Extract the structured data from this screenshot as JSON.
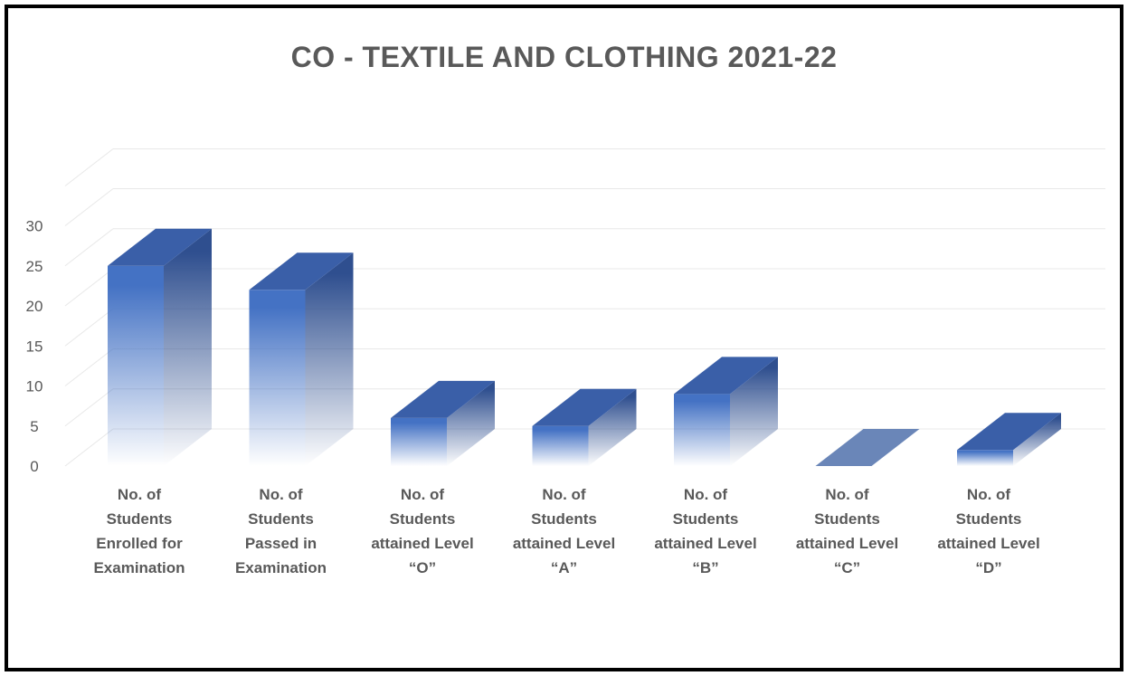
{
  "chart_data": {
    "type": "bar",
    "title": "CO - TEXTILE AND CLOTHING 2021-22",
    "categories": [
      [
        "No. of",
        "Students",
        "Enrolled for",
        "Examination"
      ],
      [
        "No. of",
        "Students",
        "Passed in",
        "Examination"
      ],
      [
        "No. of",
        "Students",
        "attained Level",
        "“O”"
      ],
      [
        "No. of",
        "Students",
        "attained Level",
        "“A”"
      ],
      [
        "No. of",
        "Students",
        "attained Level",
        "“B”"
      ],
      [
        "No. of",
        "Students",
        "attained Level",
        "“C”"
      ],
      [
        "No. of",
        "Students",
        "attained Level",
        "“D”"
      ]
    ],
    "values": [
      25,
      22,
      6,
      5,
      9,
      0,
      2
    ],
    "ylim": [
      0,
      30
    ],
    "yticks": [
      "0",
      "5",
      "10",
      "15",
      "20",
      "25",
      "30"
    ],
    "grid": true,
    "legend": "none",
    "colors": {
      "front": "#4472c4",
      "side": "#2f4f8f",
      "top": "#3a5fa8",
      "grid": "#e8e8e8",
      "text": "#595959"
    }
  }
}
